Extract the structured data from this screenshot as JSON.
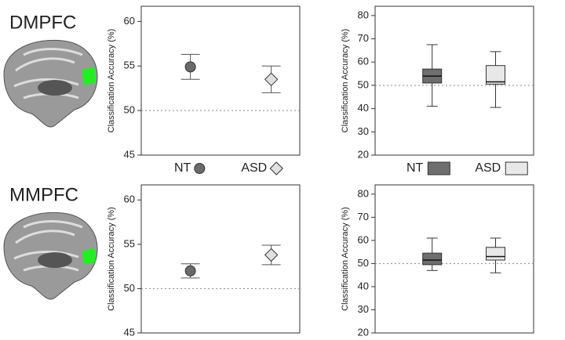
{
  "regions": [
    "DMPFC",
    "MMPFC"
  ],
  "chart_data": [
    {
      "type": "errorbar",
      "ylabel": "Classification Accuracy (%)",
      "ylim": [
        45,
        61.7
      ],
      "yticks": [
        45,
        50,
        55,
        60
      ],
      "ref_line": 50,
      "legend": "bottom",
      "series": [
        {
          "name": "NT",
          "marker": "circle",
          "color": "#6a6a6a",
          "value": 54.9,
          "error": 1.4
        },
        {
          "name": "ASD",
          "marker": "diamond",
          "color": "#e0e0e0",
          "value": 53.5,
          "error": 1.5
        }
      ]
    },
    {
      "type": "box",
      "ylabel": "Classification Accuracy (%)",
      "ylim": [
        20,
        84
      ],
      "yticks": [
        20,
        30,
        40,
        50,
        60,
        70,
        80
      ],
      "ref_line": 50,
      "legend": "bottom",
      "series": [
        {
          "name": "NT",
          "color": "#6e6e6e",
          "whisker_low": 41,
          "q1": 51,
          "median": 54,
          "q3": 57,
          "whisker_high": 67.5
        },
        {
          "name": "ASD",
          "color": "#e8e8e8",
          "whisker_low": 40.5,
          "q1": 50.5,
          "median": 51.5,
          "q3": 58.5,
          "whisker_high": 64.5
        }
      ]
    },
    {
      "type": "errorbar",
      "ylabel": "Classification Accuracy (%)",
      "ylim": [
        45,
        61.7
      ],
      "yticks": [
        45,
        50,
        55,
        60
      ],
      "ref_line": 50,
      "series": [
        {
          "name": "NT",
          "marker": "circle",
          "color": "#6a6a6a",
          "value": 52,
          "error": 0.8
        },
        {
          "name": "ASD",
          "marker": "diamond",
          "color": "#e0e0e0",
          "value": 53.8,
          "error": 1.1
        }
      ]
    },
    {
      "type": "box",
      "ylabel": "Classification Accuracy (%)",
      "ylim": [
        20,
        84
      ],
      "yticks": [
        20,
        30,
        40,
        50,
        60,
        70,
        80
      ],
      "ref_line": 50,
      "series": [
        {
          "name": "NT",
          "color": "#6e6e6e",
          "whisker_low": 47,
          "q1": 49.5,
          "median": 51.5,
          "q3": 54.5,
          "whisker_high": 61
        },
        {
          "name": "ASD",
          "color": "#e8e8e8",
          "whisker_low": 46,
          "q1": 51.5,
          "median": 53,
          "q3": 57,
          "whisker_high": 61
        }
      ]
    }
  ]
}
